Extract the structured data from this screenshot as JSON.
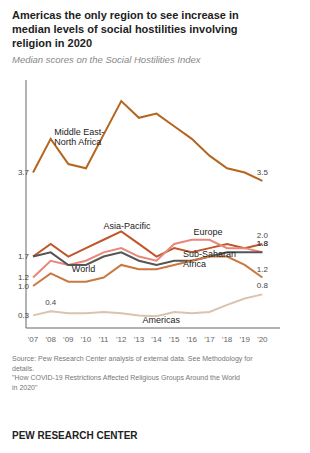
{
  "chart_data": {
    "type": "line",
    "title": "Americas the only region to see increase in\nmedian levels of social hostilities involving\nreligion in 2020",
    "subtitle": "Median scores on the Social Hostilities Index",
    "x": [
      2007,
      2008,
      2009,
      2010,
      2011,
      2012,
      2013,
      2014,
      2015,
      2016,
      2017,
      2018,
      2019,
      2020
    ],
    "xlim": [
      2006.6,
      2021.0
    ],
    "xticks": [
      {
        "value": 2007,
        "label": "'07"
      },
      {
        "value": 2008,
        "label": "'08"
      },
      {
        "value": 2009,
        "label": "'09"
      },
      {
        "value": 2010,
        "label": "'10"
      },
      {
        "value": 2011,
        "label": "'11"
      },
      {
        "value": 2012,
        "label": "'12"
      },
      {
        "value": 2013,
        "label": "'13"
      },
      {
        "value": 2014,
        "label": "'14"
      },
      {
        "value": 2015,
        "label": "'15"
      },
      {
        "value": 2016,
        "label": "'16"
      },
      {
        "value": 2017,
        "label": "'17"
      },
      {
        "value": 2018,
        "label": "'18"
      },
      {
        "value": 2019,
        "label": "'19"
      },
      {
        "value": 2020,
        "label": "'20"
      }
    ],
    "ylim": [
      0.0,
      5.9
    ],
    "yticks": [],
    "tick_labels": "x",
    "grid": false,
    "series": [
      {
        "name": "Middle East-\nNorth Africa",
        "color": "#b5651d",
        "values": [
          3.7,
          4.5,
          3.9,
          3.8,
          4.6,
          5.4,
          5.0,
          5.1,
          4.8,
          4.5,
          4.1,
          3.8,
          3.7,
          3.5
        ],
        "value_labels": [
          "3.7",
          null,
          null,
          null,
          null,
          null,
          null,
          null,
          null,
          null,
          null,
          null,
          null,
          "3.5"
        ]
      },
      {
        "name": "Asia-Pacific",
        "color": "#c0562a",
        "values": [
          1.7,
          2.0,
          1.7,
          1.9,
          2.1,
          2.3,
          2.0,
          1.7,
          1.9,
          1.8,
          1.9,
          2.0,
          1.9,
          2.0
        ],
        "value_labels": [
          null,
          null,
          null,
          null,
          null,
          null,
          null,
          null,
          null,
          null,
          null,
          null,
          null,
          "2.0"
        ]
      },
      {
        "name": "Europe",
        "color": "#e8877a",
        "values": [
          1.2,
          1.6,
          1.5,
          1.6,
          1.8,
          1.9,
          1.7,
          1.6,
          2.0,
          2.1,
          2.1,
          1.9,
          1.9,
          1.8
        ],
        "value_labels": [
          "1.2",
          null,
          null,
          null,
          null,
          null,
          null,
          null,
          null,
          null,
          null,
          null,
          null,
          "1.8"
        ]
      },
      {
        "name": "World",
        "color": "#555555",
        "values": [
          1.7,
          1.8,
          1.5,
          1.5,
          1.7,
          1.8,
          1.6,
          1.5,
          1.6,
          1.6,
          1.7,
          1.8,
          1.8,
          1.8
        ],
        "value_labels": [
          "1.7",
          null,
          null,
          null,
          null,
          null,
          null,
          null,
          null,
          null,
          null,
          null,
          null,
          "1.8"
        ]
      },
      {
        "name": "Sub-Saharan\nAfrica",
        "color": "#c87941",
        "values": [
          1.0,
          1.3,
          1.1,
          1.1,
          1.2,
          1.5,
          1.4,
          1.4,
          1.5,
          1.6,
          1.7,
          1.7,
          1.5,
          1.2
        ],
        "value_labels": [
          "1.0",
          null,
          null,
          null,
          null,
          null,
          null,
          null,
          null,
          null,
          null,
          null,
          null,
          "1.2"
        ]
      },
      {
        "name": "Americas",
        "color": "#d9c4b0",
        "values": [
          0.3,
          0.4,
          0.35,
          0.35,
          0.38,
          0.35,
          0.3,
          0.28,
          0.38,
          0.35,
          0.38,
          0.55,
          0.7,
          0.8
        ],
        "value_labels": [
          "0.3",
          "0.4",
          null,
          null,
          null,
          null,
          null,
          null,
          null,
          null,
          null,
          null,
          null,
          "0.8"
        ]
      }
    ],
    "annotations": [
      {
        "text": "Middle East-\nNorth Africa",
        "x": 2008.2,
        "y": 4.55
      },
      {
        "text": "Asia-Pacific",
        "x": 2011.0,
        "y": 2.42
      },
      {
        "text": "Europe",
        "x": 2016.1,
        "y": 2.28
      },
      {
        "text": "World",
        "x": 2009.2,
        "y": 1.4
      },
      {
        "text": "Sub-Saharan\nAfrica",
        "x": 2015.5,
        "y": 1.64
      },
      {
        "text": "Americas",
        "x": 2013.2,
        "y": 0.19
      }
    ],
    "source": "Source: Pew Research Center analysis of external data. See Methodology for\ndetails.\n\"How COVID-19 Restrictions Affected Religious Groups Around the World\nin 2020\"",
    "footer": "PEW RESEARCH CENTER"
  }
}
